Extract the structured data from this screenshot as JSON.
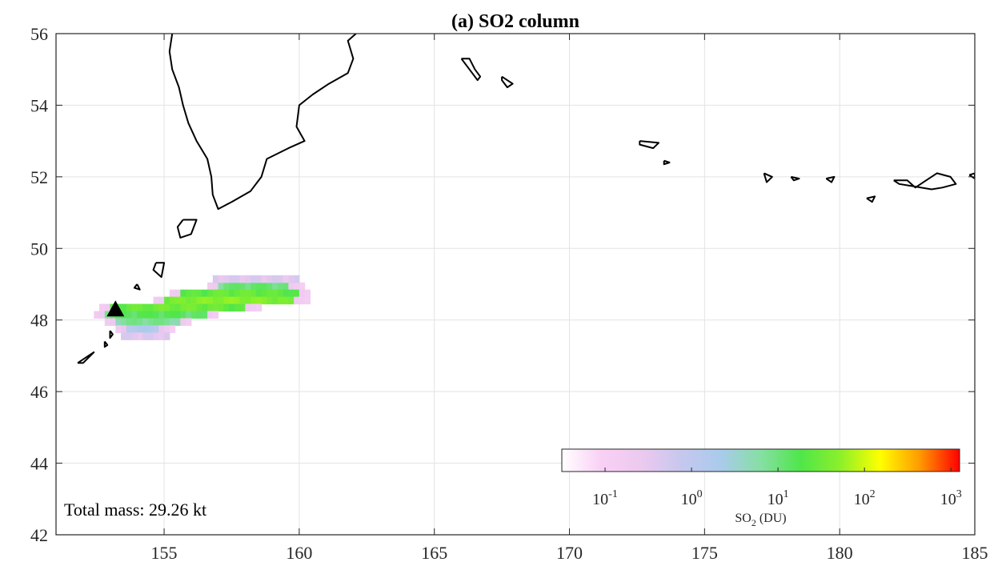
{
  "chart_data": {
    "type": "heatmap",
    "title": "(a) SO2 column",
    "xlim": [
      151,
      185
    ],
    "ylim": [
      42,
      56
    ],
    "x_ticks": [
      "155",
      "160",
      "165",
      "170",
      "175",
      "180",
      "185"
    ],
    "x_tick_values": [
      155,
      160,
      165,
      170,
      175,
      180,
      185
    ],
    "y_ticks": [
      "42",
      "44",
      "46",
      "48",
      "50",
      "52",
      "54",
      "56"
    ],
    "y_tick_values": [
      42,
      44,
      46,
      48,
      50,
      52,
      54,
      56
    ],
    "grid": true,
    "annotation": "Total mass: 29.26 kt",
    "volcano_marker": {
      "lon": 153.2,
      "lat": 48.3,
      "shape": "triangle"
    },
    "colorbar": {
      "label_main": "SO",
      "label_sub": "2",
      "label_unit": " (DU)",
      "scale": "log",
      "range_exponents": [
        -1.5,
        3.1
      ],
      "tick_bases": [
        "10",
        "10",
        "10",
        "10",
        "10"
      ],
      "tick_exponents": [
        "-1",
        "0",
        "1",
        "2",
        "3"
      ],
      "tick_exponent_values": [
        -1,
        0,
        1,
        2,
        3
      ],
      "colors": [
        "#ffffff",
        "#f9d0f5",
        "#ecc9ef",
        "#c7c7ee",
        "#a9cbec",
        "#86dfa3",
        "#4fe64a",
        "#8cf02a",
        "#ffff00",
        "#ff9a00",
        "#ff0000"
      ],
      "placement": "bottom-right"
    },
    "plume_rows": [
      {
        "lat": 48.95,
        "lon_start": 157.0,
        "lon_end": 159.6,
        "peak_du": 15
      },
      {
        "lat": 48.75,
        "lon_start": 155.6,
        "lon_end": 159.9,
        "peak_du": 35
      },
      {
        "lat": 48.55,
        "lon_start": 155.0,
        "lon_end": 159.8,
        "peak_du": 60
      },
      {
        "lat": 48.35,
        "lon_start": 153.0,
        "lon_end": 158.0,
        "peak_du": 40
      },
      {
        "lat": 48.15,
        "lon_start": 152.8,
        "lon_end": 156.5,
        "peak_du": 20
      },
      {
        "lat": 47.95,
        "lon_start": 153.2,
        "lon_end": 155.5,
        "peak_du": 10
      },
      {
        "lat": 47.75,
        "lon_start": 153.6,
        "lon_end": 154.8,
        "peak_du": 2
      }
    ],
    "coastlines": [
      [
        [
          155.3,
          56.0
        ],
        [
          155.2,
          55.5
        ],
        [
          155.3,
          55.0
        ],
        [
          155.55,
          54.5
        ],
        [
          155.7,
          54.0
        ],
        [
          155.9,
          53.5
        ],
        [
          156.2,
          53.0
        ],
        [
          156.6,
          52.5
        ],
        [
          156.75,
          52.0
        ],
        [
          156.8,
          51.5
        ],
        [
          157.0,
          51.1
        ],
        [
          157.5,
          51.3
        ],
        [
          158.2,
          51.6
        ],
        [
          158.6,
          52.0
        ],
        [
          158.8,
          52.5
        ],
        [
          159.6,
          52.8
        ],
        [
          160.2,
          53.0
        ],
        [
          159.9,
          53.4
        ],
        [
          160.0,
          54.0
        ],
        [
          160.5,
          54.3
        ],
        [
          161.1,
          54.6
        ],
        [
          161.8,
          54.9
        ],
        [
          162.0,
          55.3
        ],
        [
          161.8,
          55.8
        ],
        [
          162.1,
          56.0
        ]
      ],
      [
        [
          166.0,
          55.3
        ],
        [
          166.3,
          55.3
        ],
        [
          166.5,
          55.0
        ],
        [
          166.7,
          54.8
        ],
        [
          166.6,
          54.7
        ],
        [
          166.3,
          55.0
        ],
        [
          166.0,
          55.3
        ]
      ],
      [
        [
          167.5,
          54.8
        ],
        [
          167.9,
          54.6
        ],
        [
          167.7,
          54.5
        ],
        [
          167.5,
          54.7
        ],
        [
          167.5,
          54.8
        ]
      ],
      [
        [
          172.6,
          53.0
        ],
        [
          173.3,
          52.95
        ],
        [
          173.1,
          52.8
        ],
        [
          172.6,
          52.9
        ],
        [
          172.6,
          53.0
        ]
      ],
      [
        [
          173.5,
          52.45
        ],
        [
          173.7,
          52.4
        ],
        [
          173.5,
          52.35
        ],
        [
          173.5,
          52.45
        ]
      ],
      [
        [
          177.2,
          52.1
        ],
        [
          177.5,
          52.0
        ],
        [
          177.3,
          51.85
        ],
        [
          177.2,
          52.1
        ]
      ],
      [
        [
          178.2,
          52.0
        ],
        [
          178.5,
          51.95
        ],
        [
          178.3,
          51.9
        ],
        [
          178.2,
          52.0
        ]
      ],
      [
        [
          179.5,
          51.95
        ],
        [
          179.8,
          52.0
        ],
        [
          179.7,
          51.85
        ],
        [
          179.5,
          51.95
        ]
      ],
      [
        [
          181.0,
          51.4
        ],
        [
          181.3,
          51.45
        ],
        [
          181.2,
          51.3
        ],
        [
          181.0,
          51.4
        ]
      ],
      [
        [
          182.0,
          51.9
        ],
        [
          182.5,
          51.9
        ],
        [
          182.8,
          51.7
        ],
        [
          183.2,
          51.9
        ],
        [
          183.6,
          52.1
        ],
        [
          184.1,
          52.0
        ],
        [
          184.3,
          51.8
        ],
        [
          183.8,
          51.7
        ],
        [
          183.4,
          51.65
        ],
        [
          182.6,
          51.75
        ],
        [
          182.2,
          51.8
        ],
        [
          182.0,
          51.9
        ]
      ],
      [
        [
          184.8,
          52.05
        ],
        [
          185.0,
          52.1
        ],
        [
          185.0,
          51.95
        ],
        [
          184.8,
          52.05
        ]
      ],
      [
        [
          155.7,
          50.8
        ],
        [
          156.2,
          50.8
        ],
        [
          156.0,
          50.4
        ],
        [
          155.6,
          50.3
        ],
        [
          155.5,
          50.6
        ],
        [
          155.7,
          50.8
        ]
      ],
      [
        [
          154.7,
          49.6
        ],
        [
          155.0,
          49.6
        ],
        [
          154.9,
          49.2
        ],
        [
          154.6,
          49.4
        ],
        [
          154.7,
          49.6
        ]
      ],
      [
        [
          154.0,
          49.0
        ],
        [
          154.1,
          48.85
        ],
        [
          153.9,
          48.9
        ],
        [
          154.0,
          49.0
        ]
      ],
      [
        [
          153.0,
          47.7
        ],
        [
          153.1,
          47.6
        ],
        [
          153.0,
          47.5
        ],
        [
          153.0,
          47.7
        ]
      ],
      [
        [
          152.8,
          47.4
        ],
        [
          152.9,
          47.3
        ],
        [
          152.8,
          47.25
        ],
        [
          152.8,
          47.4
        ]
      ],
      [
        [
          151.8,
          46.8
        ],
        [
          152.2,
          47.0
        ],
        [
          152.4,
          47.1
        ],
        [
          152.0,
          46.8
        ],
        [
          151.8,
          46.8
        ]
      ]
    ]
  }
}
